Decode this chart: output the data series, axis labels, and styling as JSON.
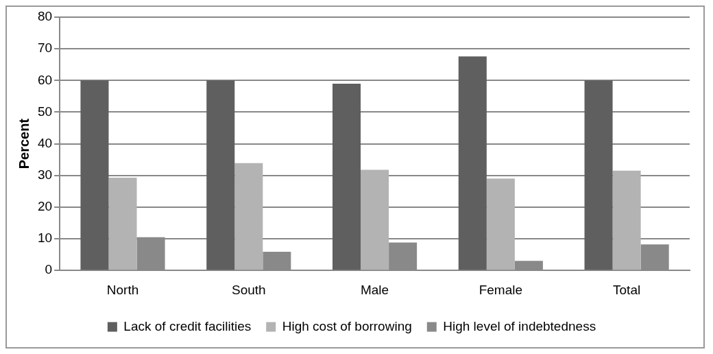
{
  "chart_data": {
    "type": "bar",
    "ylabel": "Percent",
    "categories": [
      "North",
      "South",
      "Male",
      "Female",
      "Total"
    ],
    "series": [
      {
        "name": "Lack of credit facilities",
        "color": "#5f5f5f",
        "values": [
          60,
          60,
          59,
          67.6,
          60
        ]
      },
      {
        "name": "High cost of borrowing",
        "color": "#b3b3b3",
        "values": [
          29.3,
          33.9,
          31.8,
          29,
          31.5
        ]
      },
      {
        "name": "High level of indebtedness",
        "color": "#898989",
        "values": [
          10.5,
          5.9,
          8.8,
          3,
          8.2
        ]
      }
    ],
    "ylim": [
      0,
      80
    ],
    "yticks": [
      0,
      10,
      20,
      30,
      40,
      50,
      60,
      70,
      80
    ],
    "grid": "y",
    "legend": "bottom"
  }
}
